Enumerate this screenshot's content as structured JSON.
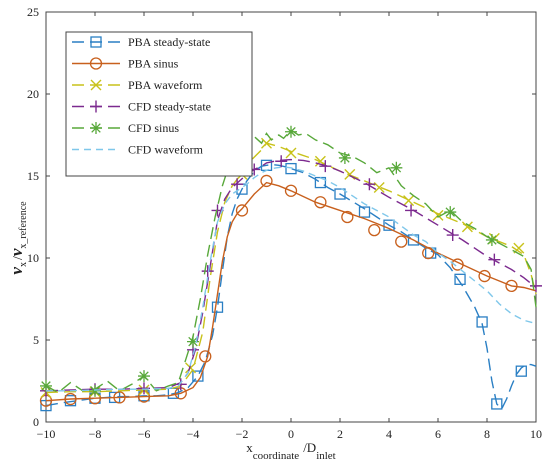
{
  "chart_data": {
    "type": "line",
    "xlim": [
      -10,
      10
    ],
    "ylim": [
      0,
      25
    ],
    "x_ticks": [
      -10,
      -8,
      -6,
      -4,
      -2,
      0,
      2,
      4,
      6,
      8,
      10
    ],
    "y_ticks": [
      0,
      5,
      10,
      15,
      20,
      25
    ],
    "ylabel": {
      "v1": "v",
      "s1": "x",
      "slash": "/",
      "v2": "v",
      "s2": "x_reference"
    },
    "xlabel": {
      "main": "x",
      "sub1": "coordinate",
      "slash": "/D",
      "sub2": "inlet"
    },
    "grid": false,
    "legend_position": "top-left",
    "series": [
      {
        "name": "PBA steady-state",
        "color": "#2a7fc4",
        "dash": "long-dash",
        "marker": "square",
        "x": [
          -10,
          -9.2,
          -8.5,
          -8,
          -7.5,
          -7,
          -6.5,
          -6,
          -5.5,
          -5,
          -4.6,
          -4.2,
          -3.8,
          -3.5,
          -3.2,
          -3,
          -2.8,
          -2.6,
          -2.4,
          -2.2,
          -2,
          -1.8,
          -1.6,
          -1.4,
          -1.2,
          -1,
          -0.8,
          -0.5,
          -0.2,
          0,
          0.5,
          1,
          1.5,
          2,
          2.5,
          3,
          3.5,
          4,
          4.5,
          5,
          5.5,
          6,
          6.5,
          7,
          7.5,
          7.8,
          8,
          8.2,
          8.4,
          8.6,
          8.8,
          9,
          9.2,
          9.4,
          9.6,
          9.8,
          10
        ],
        "y": [
          1.0,
          1.2,
          1.35,
          1.45,
          1.5,
          1.55,
          1.55,
          1.6,
          1.6,
          1.65,
          1.8,
          2.1,
          2.8,
          3.7,
          5.3,
          7.0,
          9.2,
          11.3,
          12.7,
          13.6,
          14.2,
          14.7,
          15.1,
          15.4,
          15.6,
          15.65,
          15.7,
          15.65,
          15.55,
          15.45,
          15.2,
          14.8,
          14.3,
          13.9,
          13.45,
          13.0,
          12.5,
          12.0,
          11.6,
          11.1,
          10.6,
          10.2,
          9.4,
          8.3,
          7.0,
          6.0,
          4.5,
          2.5,
          1.1,
          0.8,
          1.4,
          2.2,
          2.9,
          3.3,
          3.5,
          3.5,
          3.4
        ],
        "marker_x": [
          -10,
          -9,
          -8,
          -7.2,
          -6,
          -4.8,
          -3.8,
          -3,
          -2,
          -1,
          0,
          1.2,
          2,
          3,
          4,
          5,
          5.7,
          6.9,
          7.8,
          8.4,
          9.4
        ],
        "marker_y": [
          1.0,
          1.3,
          1.45,
          1.5,
          1.6,
          1.75,
          2.8,
          7.0,
          14.2,
          15.65,
          15.45,
          14.6,
          13.9,
          12.8,
          12.0,
          11.1,
          10.3,
          8.7,
          6.1,
          1.1,
          3.1
        ]
      },
      {
        "name": "PBA sinus",
        "color": "#c8601d",
        "dash": "solid",
        "marker": "circle",
        "x": [
          -10,
          -9,
          -8,
          -7,
          -6,
          -5,
          -4.5,
          -4.0,
          -3.7,
          -3.4,
          -3.2,
          -3.0,
          -2.8,
          -2.6,
          -2.4,
          -2.2,
          -2,
          -1.5,
          -1,
          -0.5,
          0,
          1,
          2,
          3,
          4,
          5,
          6,
          7,
          8,
          9,
          9.5,
          10
        ],
        "y": [
          1.3,
          1.4,
          1.45,
          1.5,
          1.55,
          1.6,
          1.75,
          2.1,
          2.7,
          4.0,
          5.8,
          7.8,
          9.8,
          11.3,
          12.2,
          12.7,
          13.0,
          13.9,
          14.6,
          14.4,
          14.1,
          13.4,
          12.9,
          12.4,
          11.8,
          11.1,
          10.3,
          9.6,
          8.9,
          8.3,
          8.2,
          8.0
        ],
        "marker_x": [
          -10,
          -9,
          -8,
          -7,
          -6,
          -4.5,
          -3.5,
          -2.0,
          -1,
          0,
          1.2,
          2.3,
          3.4,
          4.5,
          5.6,
          6.8,
          7.9,
          9.0
        ],
        "marker_y": [
          1.3,
          1.4,
          1.45,
          1.5,
          1.55,
          1.75,
          4.0,
          12.9,
          14.7,
          14.1,
          13.4,
          12.5,
          11.7,
          11.0,
          10.3,
          9.6,
          8.9,
          8.3
        ]
      },
      {
        "name": "PBA waveform",
        "color": "#c8c21a",
        "dash": "long-dash",
        "marker": "x",
        "x": [
          -10,
          -9,
          -8,
          -7,
          -6,
          -5,
          -4.5,
          -4.0,
          -3.6,
          -3.3,
          -3.0,
          -2.7,
          -2.4,
          -2.1,
          -2,
          -1.6,
          -1.2,
          -1,
          -0.5,
          0,
          1,
          2,
          3,
          4,
          5,
          6,
          7,
          8,
          9,
          9.5,
          9.8,
          10
        ],
        "y": [
          1.8,
          1.85,
          1.85,
          1.9,
          1.95,
          2.0,
          2.2,
          3.2,
          5.5,
          8.8,
          11.6,
          13.4,
          14.4,
          15.0,
          15.1,
          16.0,
          16.6,
          17.0,
          16.8,
          16.5,
          16.0,
          15.3,
          14.7,
          14.1,
          13.4,
          12.7,
          12.1,
          11.3,
          10.7,
          10.2,
          9.0,
          7.8
        ],
        "marker_x": [
          -10,
          -8,
          -6,
          -4.1,
          -2,
          -1,
          0,
          1.2,
          2.4,
          3.6,
          4.8,
          6,
          7.2,
          8.3,
          9.3
        ],
        "marker_y": [
          1.8,
          1.85,
          1.95,
          3.3,
          15.1,
          17.0,
          16.4,
          15.9,
          15.1,
          14.3,
          13.5,
          12.6,
          11.9,
          11.2,
          10.6
        ]
      },
      {
        "name": "CFD steady-state",
        "color": "#7c2a8f",
        "dash": "long-dash",
        "marker": "plus",
        "x": [
          -10,
          -9,
          -8,
          -7,
          -6,
          -5,
          -4.5,
          -4.2,
          -3.9,
          -3.6,
          -3.3,
          -3.0,
          -2.7,
          -2.4,
          -2.1,
          -1.8,
          -1.5,
          -1.2,
          -1,
          -0.5,
          0,
          0.5,
          1,
          1.5,
          2,
          3,
          4,
          5,
          6,
          7,
          8,
          9,
          9.5,
          10
        ],
        "y": [
          1.9,
          1.95,
          2.0,
          2.0,
          2.05,
          2.1,
          2.4,
          3.0,
          4.4,
          6.7,
          9.5,
          12.3,
          13.6,
          14.3,
          14.7,
          15.1,
          15.4,
          15.6,
          15.8,
          15.95,
          16.0,
          15.95,
          15.8,
          15.6,
          15.3,
          14.6,
          13.7,
          12.9,
          12.0,
          11.1,
          10.1,
          9.3,
          8.8,
          8.2
        ],
        "marker_x": [
          -10,
          -8,
          -6,
          -4.5,
          -4.0,
          -3.4,
          -3.0,
          -2.2,
          -1.5,
          -0.4,
          1.4,
          3.2,
          4.9,
          6.6,
          8.3,
          10
        ],
        "marker_y": [
          1.9,
          2.0,
          2.05,
          2.3,
          4.4,
          9.2,
          12.9,
          14.5,
          15.4,
          15.9,
          15.6,
          14.5,
          12.9,
          11.4,
          9.9,
          8.3
        ]
      },
      {
        "name": "CFD sinus",
        "color": "#58a83a",
        "dash": "long-dash",
        "marker": "star",
        "x": [
          -10,
          -9.5,
          -9,
          -8.5,
          -8,
          -7.5,
          -7,
          -6.5,
          -6,
          -5.5,
          -5,
          -4.6,
          -4.3,
          -4.0,
          -3.7,
          -3.4,
          -3.1,
          -2.8,
          -2.5,
          -2.2,
          -2,
          -1.8,
          -1.5,
          -1.2,
          -1,
          -0.8,
          -0.5,
          -0.3,
          0,
          0.3,
          0.6,
          1,
          1.5,
          2,
          2.5,
          3,
          3.5,
          4,
          4.5,
          5,
          5.5,
          6,
          6.5,
          7,
          7.5,
          8,
          8.5,
          9,
          9.5,
          9.8,
          10
        ],
        "y": [
          2.2,
          1.8,
          2.4,
          1.9,
          2.0,
          2.5,
          1.9,
          2.3,
          2.8,
          1.9,
          2.2,
          2.4,
          3.8,
          5.2,
          7.5,
          10.2,
          12.5,
          14.4,
          15.8,
          16.6,
          17.2,
          16.8,
          17.4,
          17.0,
          17.6,
          17.2,
          17.5,
          17.3,
          17.8,
          17.5,
          17.6,
          17.2,
          16.9,
          16.4,
          16.2,
          15.8,
          15.2,
          15.5,
          14.4,
          13.8,
          13.3,
          12.5,
          12.9,
          12.2,
          11.8,
          11.3,
          10.9,
          10.5,
          10.1,
          9.3,
          7.0
        ],
        "marker_x": [
          -10,
          -8,
          -6,
          -4.0,
          -2,
          0,
          2.2,
          4.3,
          6.5,
          8.2
        ],
        "marker_y": [
          2.2,
          1.9,
          2.8,
          4.9,
          17.2,
          17.7,
          16.1,
          15.5,
          12.8,
          11.1
        ]
      },
      {
        "name": "CFD waveform",
        "color": "#7fc7ea",
        "dash": "dash",
        "marker": "none",
        "x": [
          -10,
          -9,
          -8,
          -7,
          -6,
          -5,
          -4.6,
          -4.2,
          -3.9,
          -3.6,
          -3.3,
          -3.0,
          -2.7,
          -2.4,
          -2.1,
          -1.8,
          -1.5,
          -1.2,
          -0.9,
          -0.6,
          -0.3,
          0,
          0.5,
          1,
          1.5,
          2,
          3,
          4,
          5,
          5.5,
          6,
          6.5,
          7,
          7.5,
          8,
          8.5,
          9,
          9.5,
          10
        ],
        "y": [
          1.9,
          1.9,
          1.95,
          2.0,
          2.0,
          2.05,
          2.2,
          3.0,
          4.6,
          7.0,
          9.8,
          12.2,
          13.3,
          13.9,
          14.2,
          14.5,
          14.9,
          15.2,
          15.4,
          15.5,
          15.55,
          15.5,
          15.3,
          15.0,
          14.7,
          14.3,
          13.3,
          12.5,
          11.4,
          11.0,
          10.3,
          9.8,
          9.2,
          8.6,
          8.0,
          7.2,
          6.6,
          6.2,
          6.0
        ],
        "marker_x": [],
        "marker_y": []
      }
    ]
  }
}
